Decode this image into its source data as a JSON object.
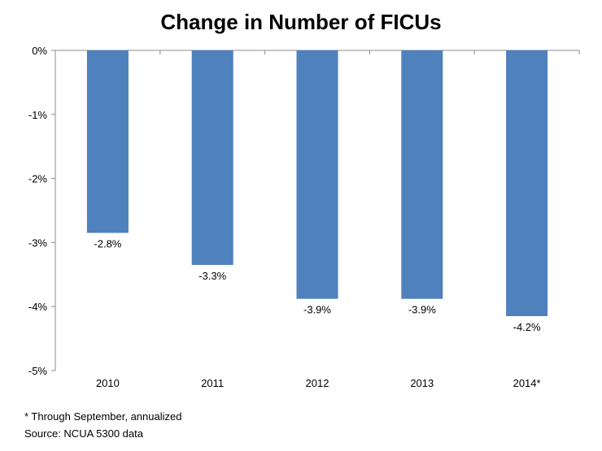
{
  "chart_data": {
    "type": "bar",
    "title": "Change in Number of FICUs",
    "categories": [
      "2010",
      "2011",
      "2012",
      "2013",
      "2014*"
    ],
    "values": [
      -2.85,
      -3.35,
      -3.88,
      -3.88,
      -4.15
    ],
    "data_labels": [
      "-2.8%",
      "-3.3%",
      "-3.9%",
      "-3.9%",
      "-4.2%"
    ],
    "ylim": [
      -5,
      0
    ],
    "yticks": [
      0,
      -1,
      -2,
      -3,
      -4,
      -5
    ],
    "ytick_labels": [
      "0%",
      "-1%",
      "-2%",
      "-3%",
      "-4%",
      "-5%"
    ],
    "xlabel": "",
    "ylabel": "",
    "grid": false,
    "bar_color": "#4f81bd"
  },
  "notes": {
    "footnote": "* Through September, annualized",
    "source": "Source: NCUA 5300 data"
  }
}
